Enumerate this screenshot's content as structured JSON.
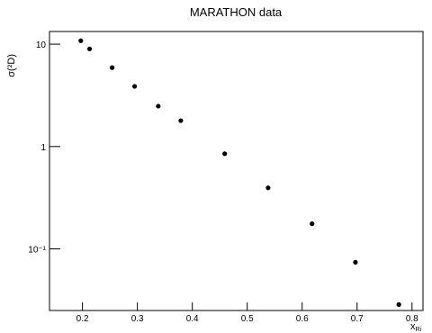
{
  "chart_data": {
    "type": "scatter",
    "title": "MARATHON data",
    "x_label": "x",
    "x_label_sub": "Ri",
    "y_label": "σ(²D)",
    "x": [
      0.197,
      0.213,
      0.254,
      0.295,
      0.338,
      0.379,
      0.459,
      0.538,
      0.618,
      0.697,
      0.776
    ],
    "values": [
      10.8,
      9.0,
      5.9,
      3.87,
      2.48,
      1.79,
      0.85,
      0.395,
      0.176,
      0.074,
      0.0286
    ],
    "color": "#000000",
    "xlim": [
      0.14,
      0.82
    ],
    "xticks": [
      0.2,
      0.3,
      0.4,
      0.5,
      0.6,
      0.7,
      0.8
    ],
    "ylim": [
      0.025,
      13.3
    ],
    "yticks": [
      {
        "value": 0.1,
        "label": "10⁻¹"
      },
      1,
      10
    ],
    "log_y": true
  }
}
